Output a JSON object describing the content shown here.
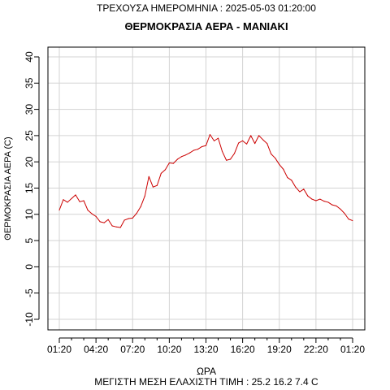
{
  "header": {
    "date_line": "ΤΡΕΧΟΥΣΑ ΗΜΕΡΟΜΗΝΙΑ : 2025-05-03 01:20:00"
  },
  "chart_data": {
    "type": "line",
    "title": "ΘΕΡΜΟΚΡΑΣΙΑ ΑΕΡΑ - ΜΑΝΙΑΚΙ",
    "xlabel": "ΩΡΑ",
    "ylabel": "ΘΕΡΜΟΚΡΑΣΙΑ ΑΕΡΑ (C)",
    "x_tick_labels": [
      "01:20",
      "04:20",
      "07:20",
      "10:20",
      "13:20",
      "16:20",
      "19:20",
      "22:20",
      "01:20"
    ],
    "y_ticks": [
      -10,
      -5,
      0,
      5,
      10,
      15,
      20,
      25,
      30,
      35,
      40
    ],
    "ylim": [
      -10,
      40
    ],
    "xlim_hours": [
      0,
      24
    ],
    "grid": true,
    "series": [
      {
        "color": "#cc0000",
        "x_hours": [
          0,
          0.33,
          0.67,
          1.0,
          1.33,
          1.67,
          2.0,
          2.33,
          2.67,
          3.0,
          3.33,
          3.67,
          4.0,
          4.33,
          4.67,
          5.0,
          5.33,
          5.67,
          6.0,
          6.33,
          6.67,
          7.0,
          7.33,
          7.67,
          8.0,
          8.33,
          8.67,
          9.0,
          9.33,
          9.67,
          10.0,
          10.33,
          10.67,
          11.0,
          11.33,
          11.67,
          12.0,
          12.33,
          12.67,
          13.0,
          13.33,
          13.67,
          14.0,
          14.33,
          14.67,
          15.0,
          15.33,
          15.67,
          16.0,
          16.33,
          16.67,
          17.0,
          17.33,
          17.67,
          18.0,
          18.33,
          18.67,
          19.0,
          19.33,
          19.67,
          20.0,
          20.33,
          20.67,
          21.0,
          21.33,
          21.67,
          22.0,
          22.33,
          22.67,
          23.0,
          23.33,
          23.67,
          24.0
        ],
        "values": [
          10.8,
          12.8,
          12.3,
          13.0,
          13.7,
          12.4,
          12.6,
          10.8,
          10.1,
          9.6,
          8.6,
          8.4,
          9.0,
          7.8,
          7.6,
          7.5,
          8.9,
          9.2,
          9.3,
          10.2,
          11.5,
          13.5,
          17.2,
          15.2,
          15.5,
          17.8,
          18.5,
          19.8,
          19.7,
          20.5,
          21.0,
          21.3,
          21.7,
          22.2,
          22.4,
          22.9,
          23.1,
          25.2,
          24.0,
          24.5,
          22.0,
          20.3,
          20.5,
          21.6,
          23.6,
          24.0,
          23.4,
          25.0,
          23.5,
          25.0,
          24.2,
          23.5,
          21.5,
          20.7,
          19.5,
          18.6,
          17.0,
          16.5,
          15.2,
          14.3,
          14.8,
          13.5,
          12.9,
          12.6,
          12.9,
          12.5,
          12.3,
          11.8,
          11.6,
          11.0,
          10.2,
          9.1,
          8.8
        ]
      }
    ],
    "summary_line": "ΜΕΓΙΣΤΗ ΜΕΣΗ ΕΛΑΧΙΣΤΗ ΤΙΜΗ :  25.2  16.2  7.4   C"
  }
}
